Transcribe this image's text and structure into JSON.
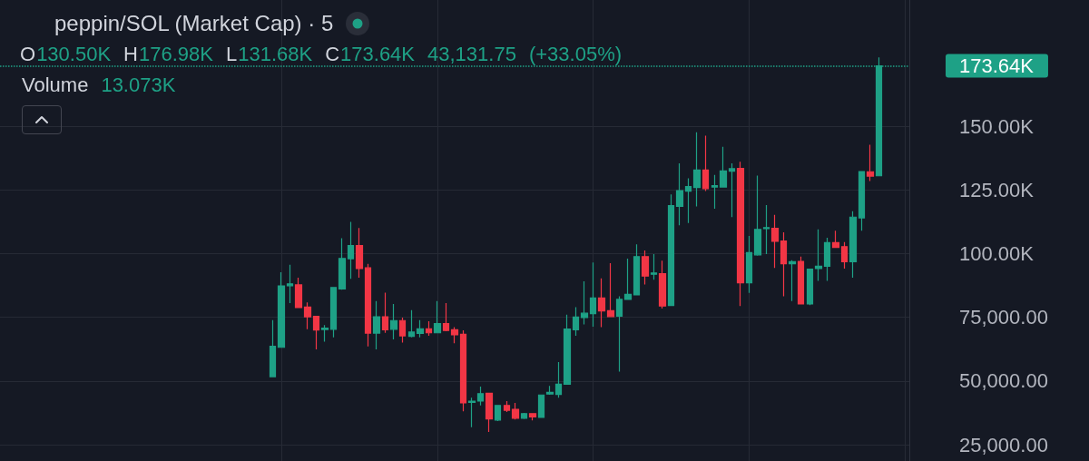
{
  "chart_data": {
    "type": "candlestick",
    "title": "peppin/SOL (Market Cap) · 5",
    "subtitle": "O130.50K H176.98K L131.68K C173.64K 43,131.75 (+33.05%)",
    "annotations": [
      "Volume 13.073K"
    ],
    "categories": [
      null,
      null,
      null,
      null,
      null,
      null,
      null,
      null,
      null,
      null,
      null,
      null,
      null,
      null,
      null,
      null,
      null,
      null,
      null,
      null,
      null,
      null,
      null,
      null,
      null,
      null,
      null,
      null,
      null,
      null,
      null,
      null,
      null,
      null,
      null,
      null,
      null,
      null,
      null,
      null,
      null,
      null,
      null,
      null,
      null,
      null,
      null,
      null,
      null,
      null,
      null,
      null,
      null,
      null,
      null,
      null,
      null,
      null,
      null,
      null,
      null,
      null,
      null,
      null,
      null,
      null,
      null,
      null,
      null,
      null,
      null,
      null,
      null,
      null,
      null,
      null,
      null,
      null,
      null,
      null,
      null,
      null,
      null,
      null,
      null,
      null,
      null,
      null,
      null,
      null,
      null,
      null,
      null,
      null,
      null,
      null,
      null,
      null,
      null,
      null,
      null,
      null,
      null,
      null,
      null
    ],
    "ohlc": [
      null,
      null,
      null,
      null,
      null,
      null,
      null,
      null,
      null,
      null,
      null,
      null,
      null,
      null,
      null,
      null,
      null,
      null,
      null,
      null,
      null,
      null,
      null,
      null,
      null,
      null,
      null,
      null,
      null,
      null,
      null,
      [
        51700,
        73900,
        51500,
        63600
      ],
      [
        63200,
        92700,
        63000,
        87300
      ],
      [
        87400,
        95600,
        80600,
        88100
      ],
      [
        87700,
        90500,
        78600,
        78800
      ],
      [
        79000,
        80800,
        70300,
        75200
      ],
      [
        75400,
        75600,
        62400,
        70000
      ],
      [
        70200,
        71900,
        65400,
        70700
      ],
      [
        70300,
        86900,
        67100,
        86700
      ],
      [
        86100,
        106000,
        85800,
        98100
      ],
      [
        98000,
        112400,
        90100,
        103100
      ],
      [
        103100,
        110000,
        90500,
        94100
      ],
      [
        94400,
        96000,
        63600,
        68800
      ],
      [
        68800,
        81400,
        62400,
        75200
      ],
      [
        75200,
        84700,
        68900,
        70100
      ],
      [
        70300,
        80200,
        66300,
        73700
      ],
      [
        73700,
        74900,
        65100,
        67700
      ],
      [
        67500,
        77800,
        67100,
        69200
      ],
      [
        68700,
        73900,
        67100,
        70500
      ],
      [
        70500,
        73400,
        67700,
        68900
      ],
      [
        68900,
        81400,
        68700,
        72500
      ],
      [
        72500,
        80600,
        69500,
        69800
      ],
      [
        70100,
        71100,
        64800,
        68100
      ],
      [
        68300,
        69900,
        38100,
        41400
      ],
      [
        41600,
        43400,
        31900,
        42100
      ],
      [
        42100,
        47800,
        40400,
        45000
      ],
      [
        45200,
        45400,
        30000,
        35100
      ],
      [
        34700,
        40600,
        34300,
        40400
      ],
      [
        40400,
        42100,
        37800,
        38500
      ],
      [
        38900,
        41400,
        34900,
        35400
      ],
      [
        35400,
        37500,
        35100,
        37200
      ],
      [
        37200,
        37400,
        34500,
        35900
      ],
      [
        35700,
        44700,
        35500,
        44500
      ],
      [
        44900,
        48100,
        44600,
        45500
      ],
      [
        44700,
        57400,
        43400,
        48700
      ],
      [
        48700,
        76000,
        48500,
        70400
      ],
      [
        70100,
        79000,
        67700,
        75100
      ],
      [
        74900,
        89100,
        72200,
        76600
      ],
      [
        76400,
        96500,
        71300,
        82600
      ],
      [
        82600,
        90300,
        71100,
        77500
      ],
      [
        77600,
        96200,
        75100,
        75300
      ],
      [
        75400,
        83200,
        53700,
        82000
      ],
      [
        82000,
        98000,
        81800,
        84000
      ],
      [
        83800,
        103600,
        83600,
        98800
      ],
      [
        98800,
        101200,
        87900,
        91200
      ],
      [
        91900,
        99800,
        89700,
        92400
      ],
      [
        92100,
        97200,
        78400,
        79400
      ],
      [
        79600,
        123200,
        79400,
        118800
      ],
      [
        118500,
        135400,
        111100,
        124700
      ],
      [
        124500,
        129500,
        112000,
        126300
      ],
      [
        125900,
        147600,
        118500,
        132800
      ],
      [
        132800,
        146300,
        124500,
        125500
      ],
      [
        126100,
        130900,
        117600,
        126600
      ],
      [
        126100,
        141900,
        126000,
        132400
      ],
      [
        132300,
        135400,
        114300,
        133300
      ],
      [
        133400,
        136000,
        79400,
        88500
      ],
      [
        88500,
        106900,
        84600,
        100400
      ],
      [
        99500,
        130600,
        99200,
        109500
      ],
      [
        109800,
        119000,
        99800,
        110200
      ],
      [
        109900,
        115200,
        94400,
        104800
      ],
      [
        104900,
        108300,
        83200,
        96000
      ],
      [
        96000,
        97400,
        81400,
        96800
      ],
      [
        96900,
        98800,
        80000,
        80200
      ],
      [
        80200,
        94100,
        79800,
        93900
      ],
      [
        94100,
        109500,
        89300,
        95000
      ],
      [
        95000,
        106200,
        89300,
        104300
      ],
      [
        104300,
        109000,
        102200,
        102400
      ],
      [
        102700,
        104500,
        94100,
        96800
      ],
      [
        96800,
        116600,
        90500,
        114300
      ],
      [
        114000,
        132400,
        109000,
        132200
      ],
      [
        132100,
        142700,
        128500,
        130400
      ],
      [
        130500,
        176980,
        130500,
        173640
      ],
      null,
      null,
      null
    ],
    "colors": [
      null,
      null,
      null,
      null,
      null,
      null,
      null,
      null,
      null,
      null,
      null,
      null,
      null,
      null,
      null,
      null,
      null,
      null,
      null,
      null,
      null,
      null,
      null,
      null,
      null,
      null,
      null,
      null,
      null,
      null,
      null,
      "#1ea186",
      "#1ea186",
      "#1ea186",
      "#f23645",
      "#f23645",
      "#f23645",
      "#1ea186",
      "#1ea186",
      "#1ea186",
      "#1ea186",
      "#f23645",
      "#f23645",
      "#1ea186",
      "#f23645",
      "#1ea186",
      "#f23645",
      "#1ea186",
      "#1ea186",
      "#f23645",
      "#1ea186",
      "#f23645",
      "#f23645",
      "#f23645",
      "#1ea186",
      "#1ea186",
      "#f23645",
      "#1ea186",
      "#f23645",
      "#f23645",
      "#1ea186",
      "#f23645",
      "#1ea186",
      "#1ea186",
      "#1ea186",
      "#1ea186",
      "#1ea186",
      "#1ea186",
      "#1ea186",
      "#f23645",
      "#f23645",
      "#1ea186",
      "#1ea186",
      "#1ea186",
      "#f23645",
      "#1ea186",
      "#f23645",
      "#1ea186",
      "#1ea186",
      "#1ea186",
      "#1ea186",
      "#f23645",
      "#1ea186",
      "#1ea186",
      "#1ea186",
      "#f23645",
      "#1ea186",
      "#1ea186",
      "#1ea186",
      "#f23645",
      "#f23645",
      "#1ea186",
      "#f23645",
      "#1ea186",
      "#1ea186",
      "#1ea186",
      "#f23645",
      "#f23645",
      "#1ea186",
      "#1ea186",
      "#f23645",
      "#1ea186",
      null,
      null,
      null
    ],
    "ylim": [
      18600,
      199500
    ],
    "yticks": [
      {
        "value": 25000,
        "label": "25,000.00"
      },
      {
        "value": 50000,
        "label": "50,000.00"
      },
      {
        "value": 75000,
        "label": "75,000.00"
      },
      {
        "value": 100000,
        "label": "100.00K"
      },
      {
        "value": 125000,
        "label": "125.00K"
      },
      {
        "value": 150000,
        "label": "150.00K"
      }
    ],
    "ref_lines": [
      {
        "axis": "y",
        "value": 173640,
        "label": "173.64K",
        "color": "#1ea186",
        "line_style": "dotted"
      }
    ],
    "grid": true,
    "tick_labels": "y"
  }
}
